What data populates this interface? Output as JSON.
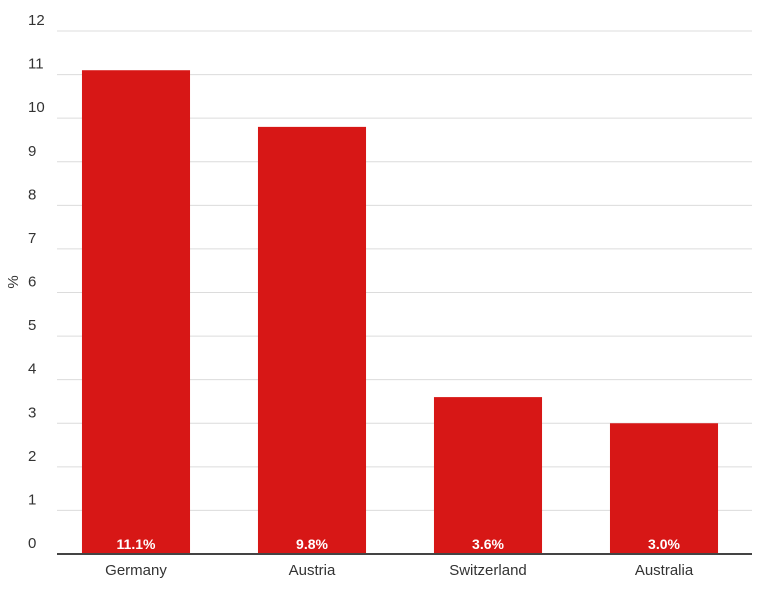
{
  "chart_data": {
    "type": "bar",
    "y_label": "%",
    "categories": [
      "Germany",
      "Austria",
      "Switzerland",
      "Australia"
    ],
    "values": [
      11.1,
      9.8,
      3.6,
      3.0
    ],
    "value_labels": [
      "11.1%",
      "9.8%",
      "3.6%",
      "3.0%"
    ],
    "color": "#d71716",
    "ylim": [
      0,
      12
    ],
    "yticks": [
      0,
      1,
      2,
      3,
      4,
      5,
      6,
      7,
      8,
      9,
      10,
      11,
      12
    ],
    "grid": true
  }
}
